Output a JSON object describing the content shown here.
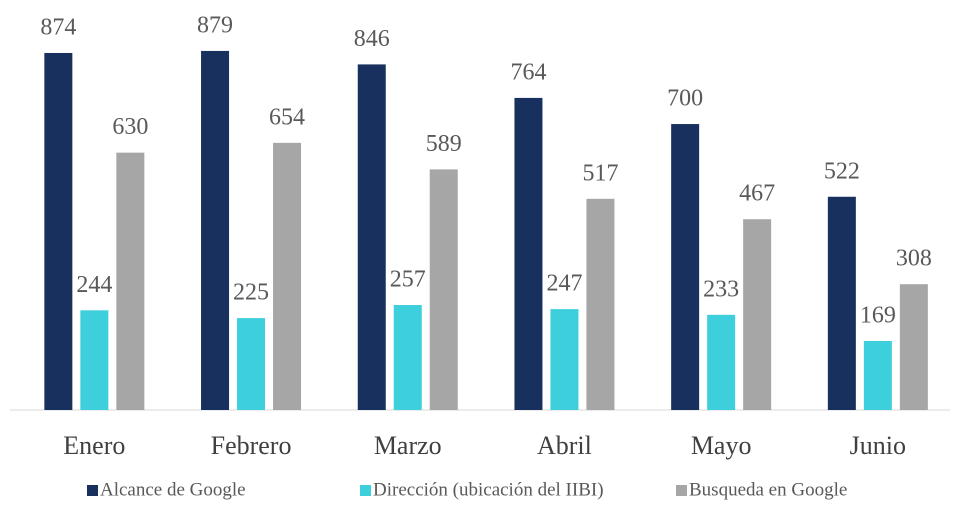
{
  "chart_data": {
    "type": "bar",
    "categories": [
      "Enero",
      "Febrero",
      "Marzo",
      "Abril",
      "Mayo",
      "Junio"
    ],
    "series": [
      {
        "name": "Alcance de Google",
        "color": "#17305e",
        "values": [
          874,
          879,
          846,
          764,
          700,
          522
        ]
      },
      {
        "name": "Dirección (ubicación del IIBI)",
        "color": "#3ecfdc",
        "values": [
          244,
          225,
          257,
          247,
          233,
          169
        ]
      },
      {
        "name": "Busqueda en Google",
        "color": "#a6a6a6",
        "values": [
          630,
          654,
          589,
          517,
          467,
          308
        ]
      }
    ],
    "ylim": [
      0,
      1000
    ],
    "legend": "bottom"
  }
}
